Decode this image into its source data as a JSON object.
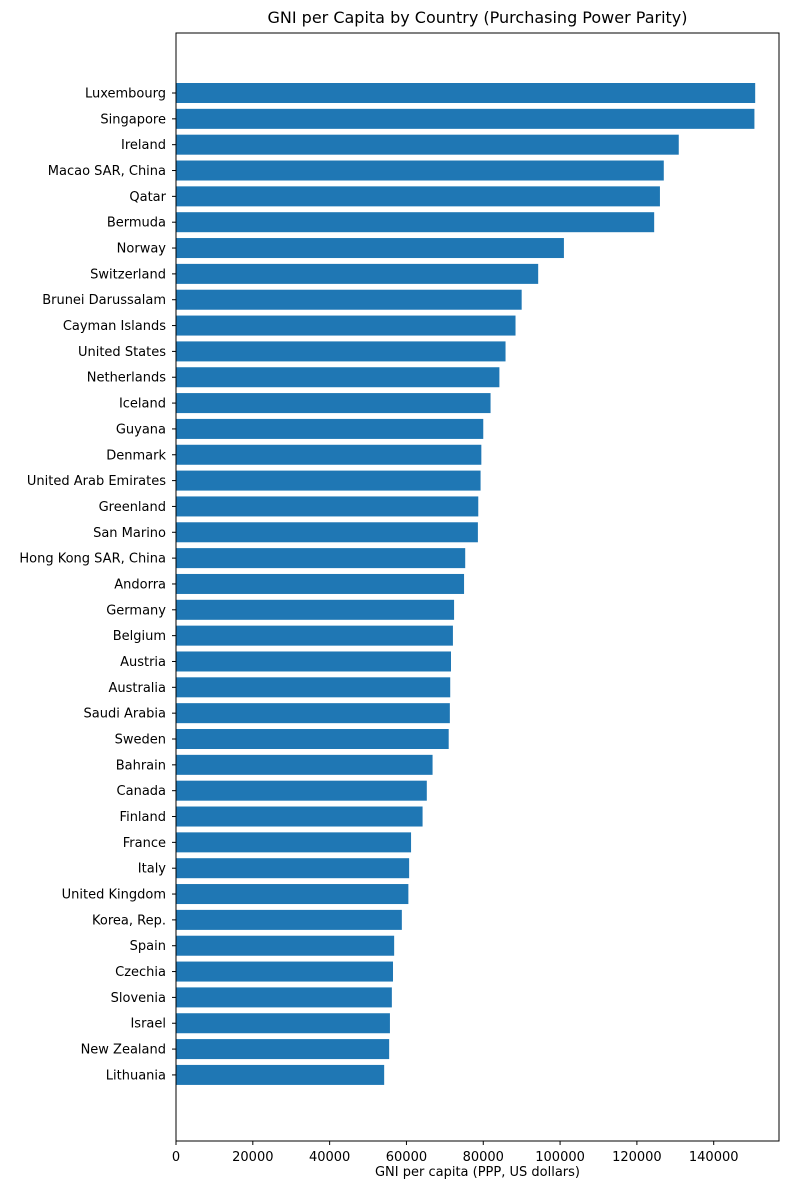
{
  "chart_data": {
    "type": "bar",
    "orientation": "horizontal",
    "title": "GNI per Capita by Country (Purchasing Power Parity)",
    "xlabel": "GNI per capita (PPP, US dollars)",
    "ylabel": "",
    "xlim": [
      0,
      157000
    ],
    "xticks": [
      0,
      20000,
      40000,
      60000,
      80000,
      100000,
      120000,
      140000
    ],
    "grid": false,
    "bar_color": "#1f77b4",
    "categories": [
      "Luxembourg",
      "Singapore",
      "Ireland",
      "Macao SAR, China",
      "Qatar",
      "Bermuda",
      "Norway",
      "Switzerland",
      "Brunei Darussalam",
      "Cayman Islands",
      "United States",
      "Netherlands",
      "Iceland",
      "Guyana",
      "Denmark",
      "United Arab Emirates",
      "Greenland",
      "San Marino",
      "Hong Kong SAR, China",
      "Andorra",
      "Germany",
      "Belgium",
      "Austria",
      "Australia",
      "Saudi Arabia",
      "Sweden",
      "Bahrain",
      "Canada",
      "Finland",
      "France",
      "Italy",
      "United Kingdom",
      "Korea, Rep.",
      "Spain",
      "Czechia",
      "Slovenia",
      "Israel",
      "New Zealand",
      "Lithuania"
    ],
    "values": [
      150800,
      150600,
      130900,
      127000,
      126000,
      124500,
      101000,
      94300,
      90000,
      88400,
      85800,
      84200,
      81900,
      80000,
      79500,
      79300,
      78700,
      78600,
      75300,
      75000,
      72400,
      72100,
      71600,
      71400,
      71300,
      71000,
      66800,
      65300,
      64200,
      61200,
      60700,
      60500,
      58800,
      56800,
      56500,
      56200,
      55700,
      55500,
      54200
    ]
  }
}
